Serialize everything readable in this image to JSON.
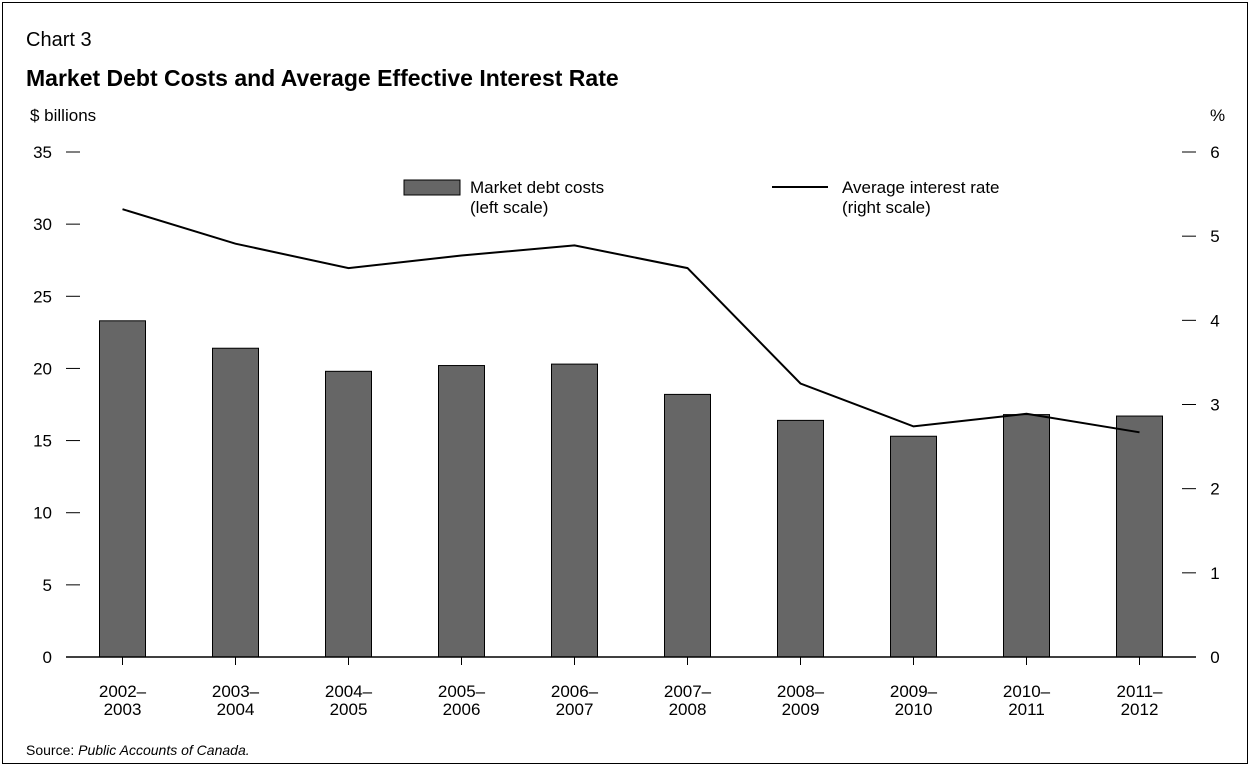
{
  "chart_label": "Chart 3",
  "title": "Market Debt Costs and Average Effective Interest Rate",
  "left_unit": "$ billions",
  "right_unit": "%",
  "source_prefix": "Source: ",
  "source_text": "Public Accounts of Canada.",
  "chart_data": {
    "type": "bar",
    "categories": [
      [
        "2002–",
        "2003"
      ],
      [
        "2003–",
        "2004"
      ],
      [
        "2004–",
        "2005"
      ],
      [
        "2005–",
        "2006"
      ],
      [
        "2006–",
        "2007"
      ],
      [
        "2007–",
        "2008"
      ],
      [
        "2008–",
        "2009"
      ],
      [
        "2009–",
        "2010"
      ],
      [
        "2010–",
        "2011"
      ],
      [
        "2011–",
        "2012"
      ]
    ],
    "series": [
      {
        "name": "Market debt costs",
        "legend_note": "(left scale)",
        "kind": "bar",
        "axis": "left",
        "color": "#666666",
        "values": [
          23.3,
          21.4,
          19.8,
          20.2,
          20.3,
          18.2,
          16.4,
          15.3,
          16.8,
          16.7
        ]
      },
      {
        "name": "Average interest rate",
        "legend_note": "(right scale)",
        "kind": "line",
        "axis": "right",
        "color": "#000000",
        "values": [
          5.32,
          4.91,
          4.62,
          4.77,
          4.89,
          4.62,
          3.25,
          2.74,
          2.89,
          2.67
        ]
      }
    ],
    "y_left": {
      "min": 0,
      "max": 35,
      "ticks": [
        0,
        5,
        10,
        15,
        20,
        25,
        30,
        35
      ]
    },
    "y_right": {
      "min": 0,
      "max": 6,
      "ticks": [
        0,
        1,
        2,
        3,
        4,
        5,
        6
      ]
    },
    "grid": false,
    "legend_position": "top-center"
  }
}
